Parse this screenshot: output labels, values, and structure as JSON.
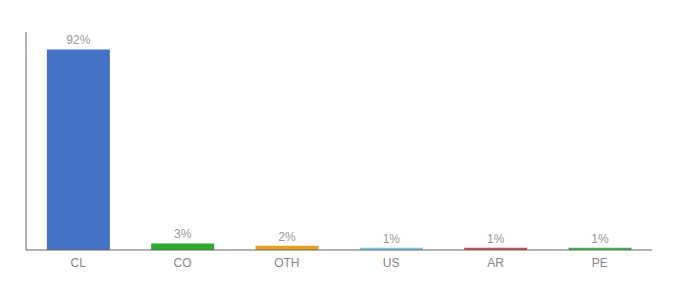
{
  "chart_data": {
    "type": "bar",
    "categories": [
      "CL",
      "CO",
      "OTH",
      "US",
      "AR",
      "PE"
    ],
    "values": [
      92,
      3,
      2,
      1,
      1,
      1
    ],
    "value_labels": [
      "92%",
      "3%",
      "2%",
      "1%",
      "1%",
      "1%"
    ],
    "data_labels": true,
    "colors": [
      "#4472C4",
      "#2EAA2E",
      "#E8A020",
      "#7EC8E3",
      "#C0504D",
      "#4CAF50"
    ],
    "ylim": [
      0,
      100
    ],
    "tick_labels": "x"
  }
}
